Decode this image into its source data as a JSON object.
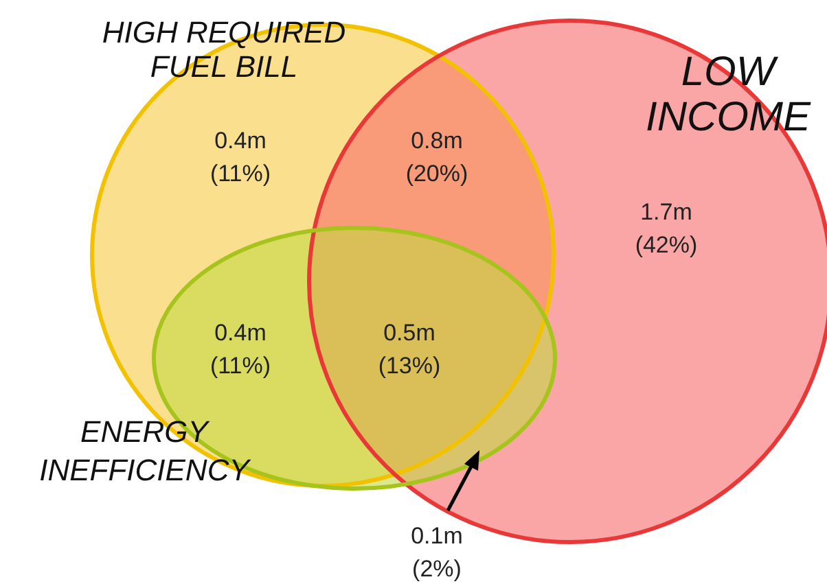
{
  "chart_data": {
    "type": "other",
    "categories": [
      null,
      null,
      null,
      null,
      null,
      null
    ],
    "values": [
      0.4,
      0.8,
      1.7,
      0.4,
      0.5,
      0.1
    ],
    "value_labels": [
      "0.4m",
      "0.8m",
      "1.7m",
      "0.4m",
      "0.5m",
      "0.1m"
    ],
    "annotations": [
      "(11%)",
      "(20%)",
      "(42%)",
      "(11%)",
      "(13%)",
      "(2%)",
      "HIGH REQUIRED\nFUEL BILL",
      "LOW\nINCOME",
      "ENERGY\nINEFFICIENCY"
    ]
  }
}
